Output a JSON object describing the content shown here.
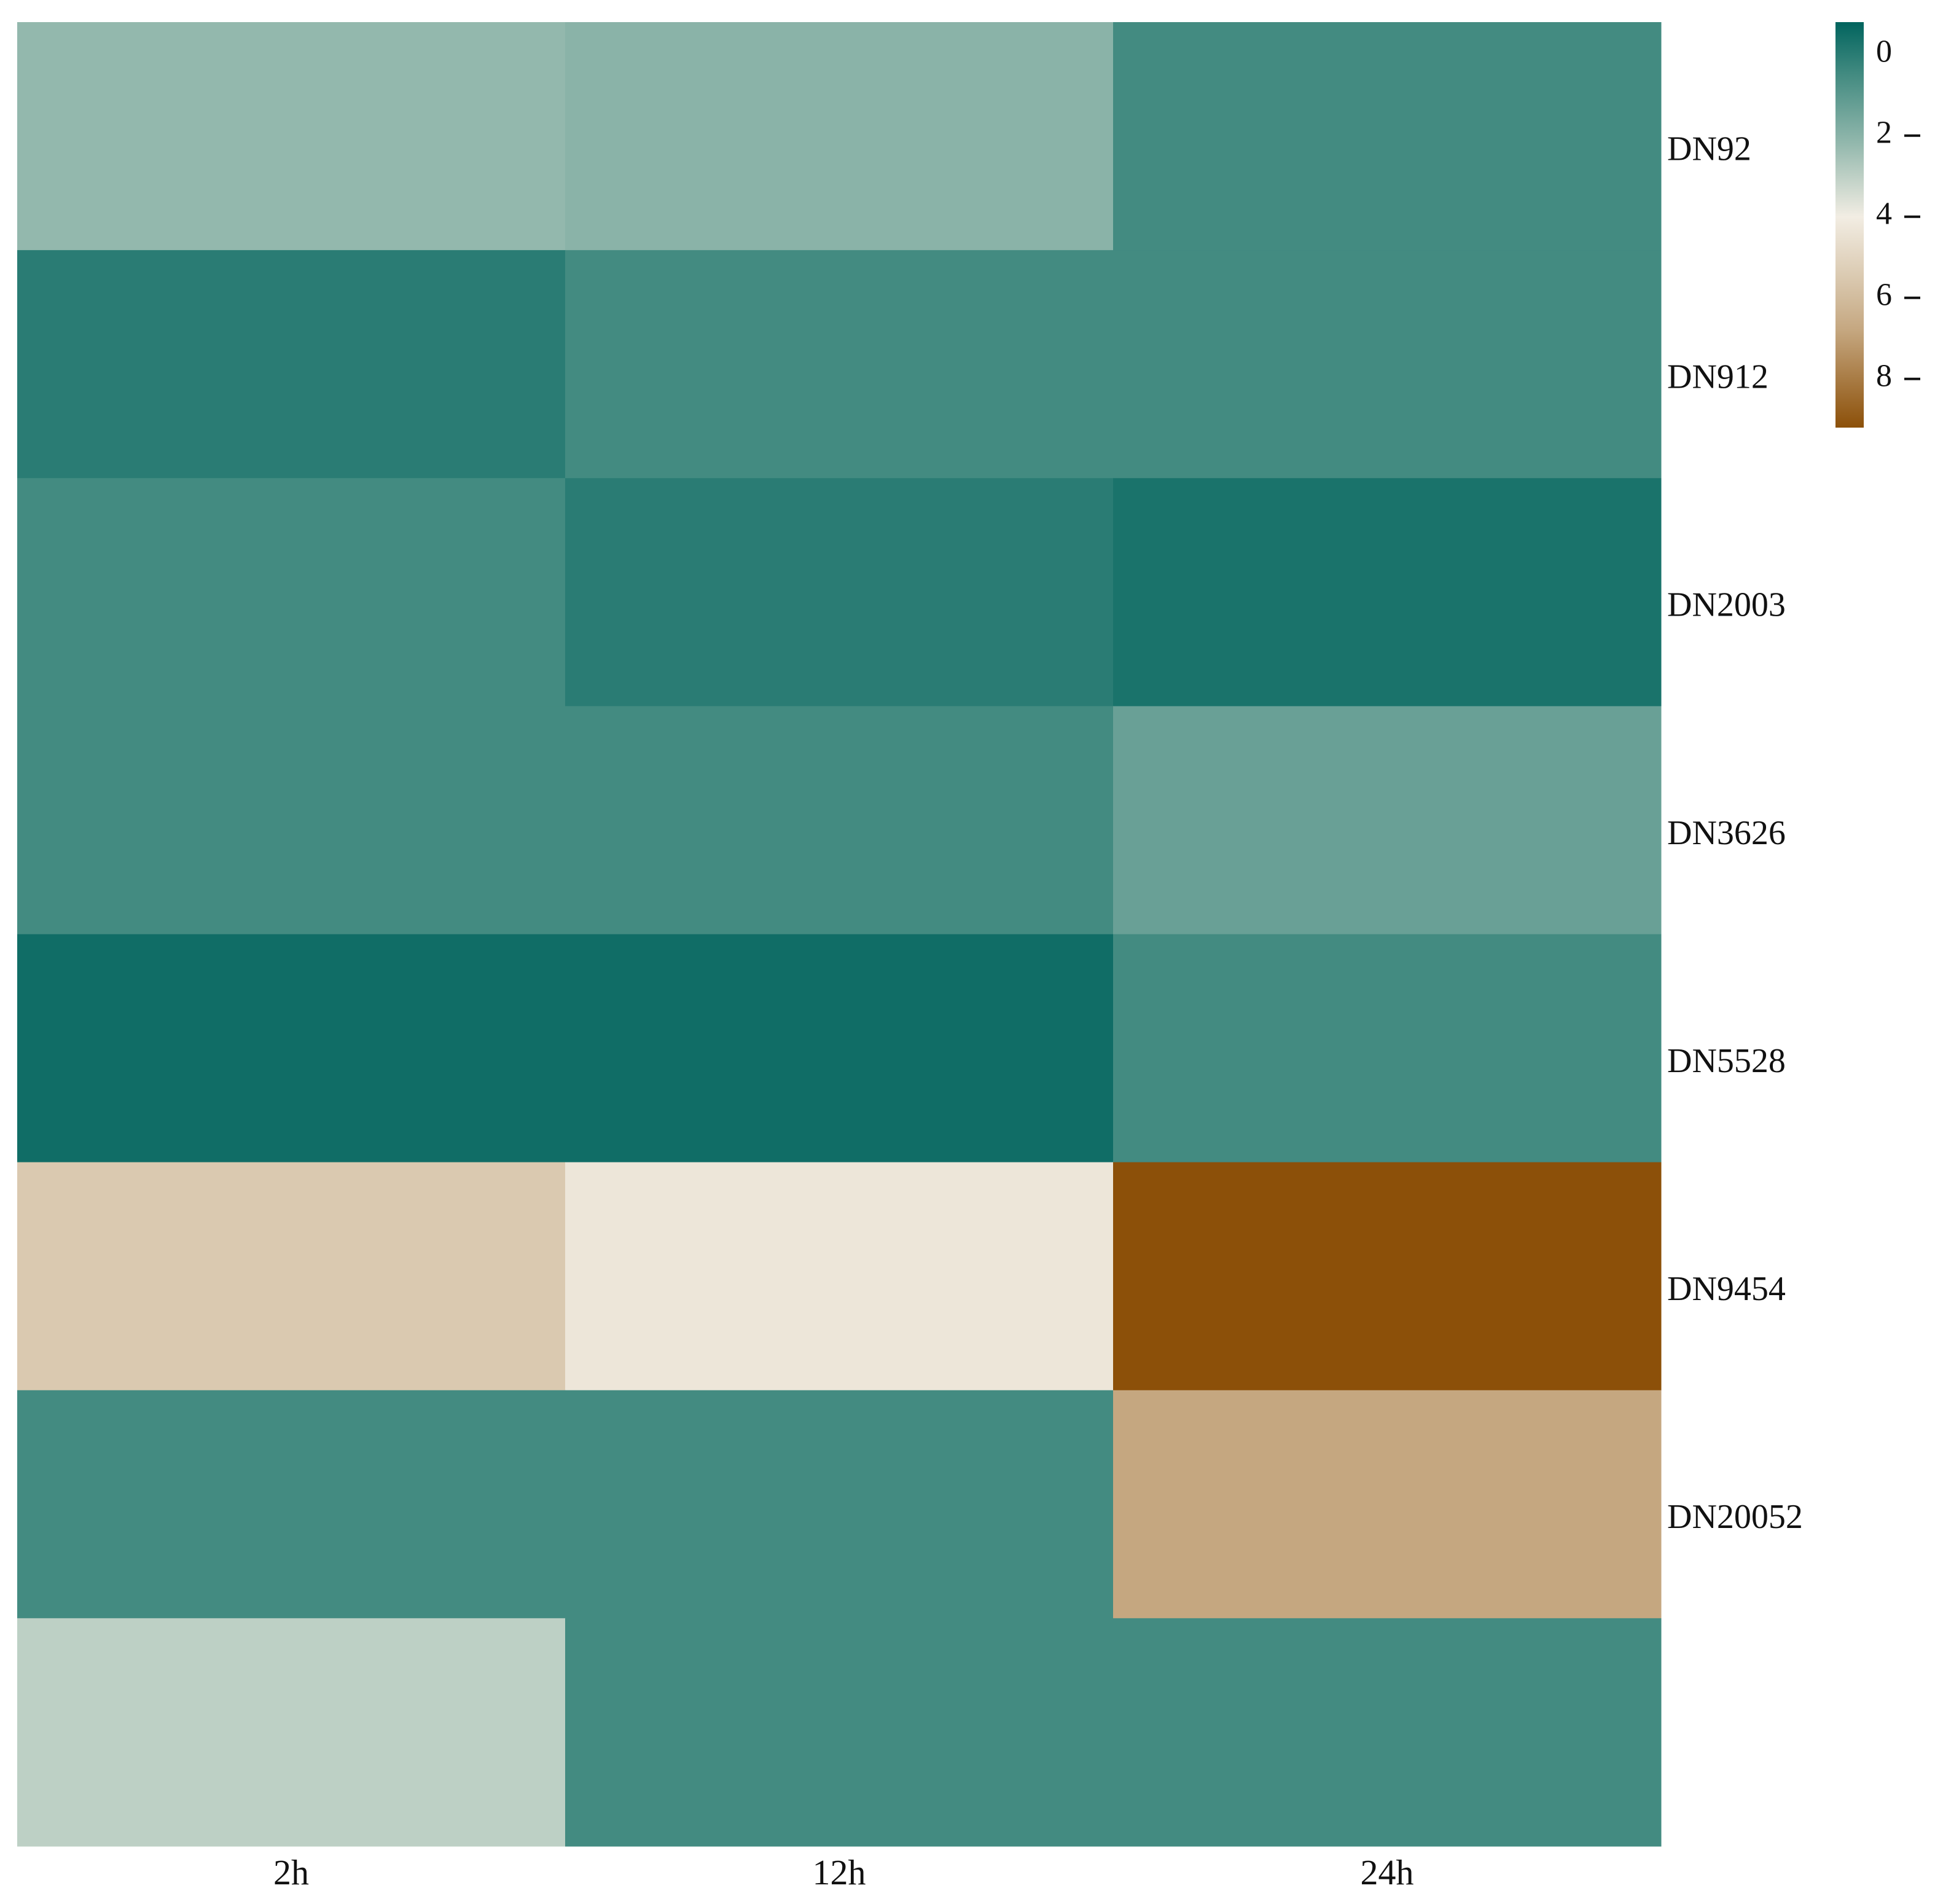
{
  "chart_data": {
    "type": "heatmap",
    "title": "",
    "xlabel": "",
    "ylabel": "",
    "columns": [
      "2h",
      "12h",
      "24h"
    ],
    "row_tick_labels": [
      "DN92",
      "DN912",
      "DN2003",
      "DN3626",
      "DN5528",
      "DN9454",
      "DN20052",
      ""
    ],
    "values": [
      [
        2.2,
        2.0,
        0.5
      ],
      [
        0.0,
        0.5,
        0.5
      ],
      [
        0.5,
        0.0,
        -0.3
      ],
      [
        0.5,
        0.5,
        1.3
      ],
      [
        -0.5,
        -0.5,
        0.5
      ],
      [
        5.5,
        4.3,
        9.2
      ],
      [
        0.5,
        0.5,
        6.8
      ],
      [
        3.0,
        0.5,
        0.5
      ]
    ],
    "colorbar": {
      "range": [
        -0.8,
        9.2
      ],
      "ticks": [
        0,
        2,
        4,
        6,
        8
      ],
      "tick_labels": [
        "0",
        "2",
        "4",
        "6",
        "8"
      ],
      "placement": "top-right",
      "colorscale": [
        {
          "value": -0.8,
          "color": "#01645e"
        },
        {
          "value": 0.5,
          "color": "#438b81"
        },
        {
          "value": 2.2,
          "color": "#93b8ad"
        },
        {
          "value": 4.0,
          "color": "#f2ede3"
        },
        {
          "value": 5.5,
          "color": "#dac9b0"
        },
        {
          "value": 6.8,
          "color": "#c5a780"
        },
        {
          "value": 9.2,
          "color": "#8c5009"
        }
      ]
    },
    "grid": false
  }
}
